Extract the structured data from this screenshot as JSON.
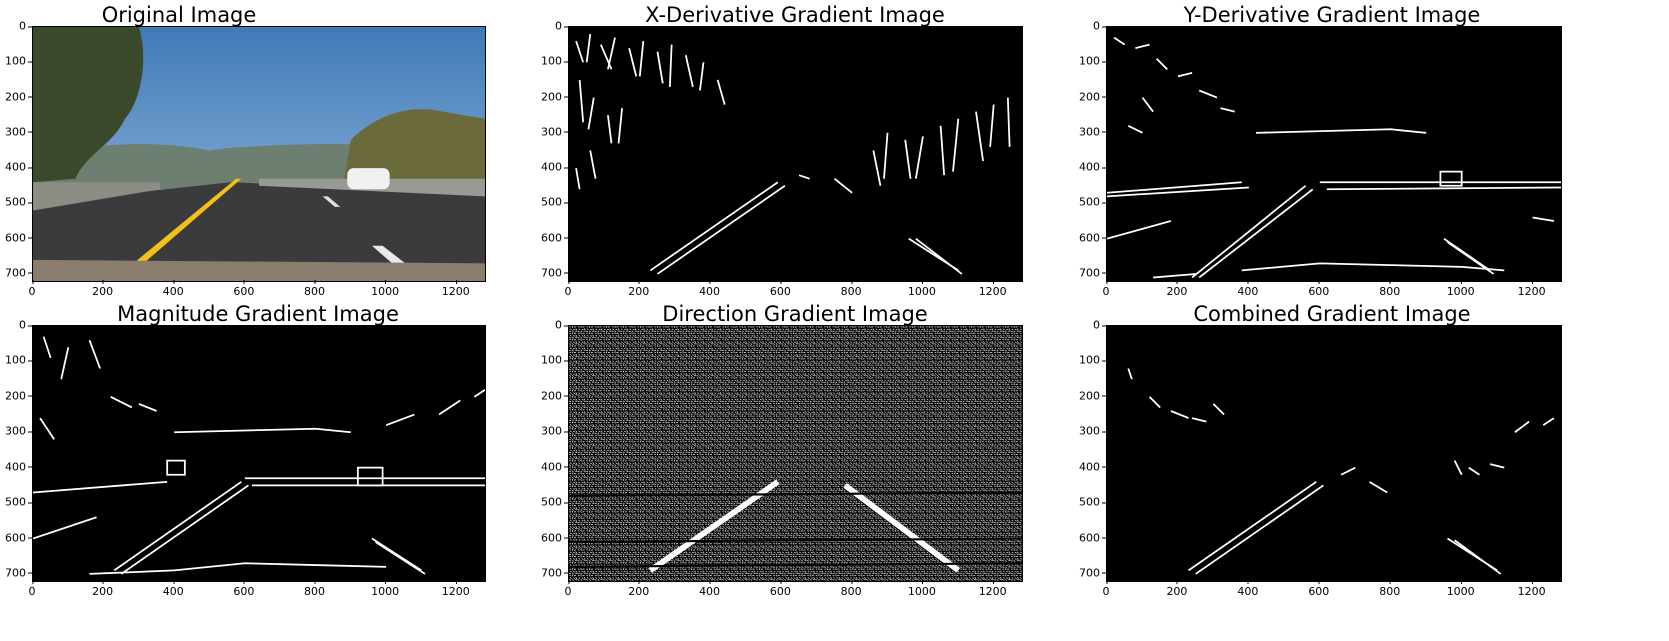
{
  "figure": {
    "panels": [
      {
        "key": "original",
        "title": "Original Image",
        "kind": "photo"
      },
      {
        "key": "xgrad",
        "title": "X-Derivative Gradient Image",
        "kind": "binary"
      },
      {
        "key": "ygrad",
        "title": "Y-Derivative Gradient Image",
        "kind": "binary"
      },
      {
        "key": "mag",
        "title": "Magnitude Gradient Image",
        "kind": "binary"
      },
      {
        "key": "dir",
        "title": "Direction Gradient Image",
        "kind": "binary"
      },
      {
        "key": "comb",
        "title": "Combined Gradient Image",
        "kind": "binary"
      }
    ],
    "x_ticks": [
      "0",
      "200",
      "400",
      "600",
      "800",
      "1000",
      "1200"
    ],
    "y_ticks": [
      "0",
      "100",
      "200",
      "300",
      "400",
      "500",
      "600",
      "700"
    ],
    "x_range": [
      0,
      1280
    ],
    "y_range": [
      0,
      720
    ],
    "colors": {
      "background": "#000000",
      "edges": "#ffffff",
      "sky": "#4f86c0",
      "road": "#3a3a3c",
      "lane_yellow": "#f2c21b"
    }
  }
}
